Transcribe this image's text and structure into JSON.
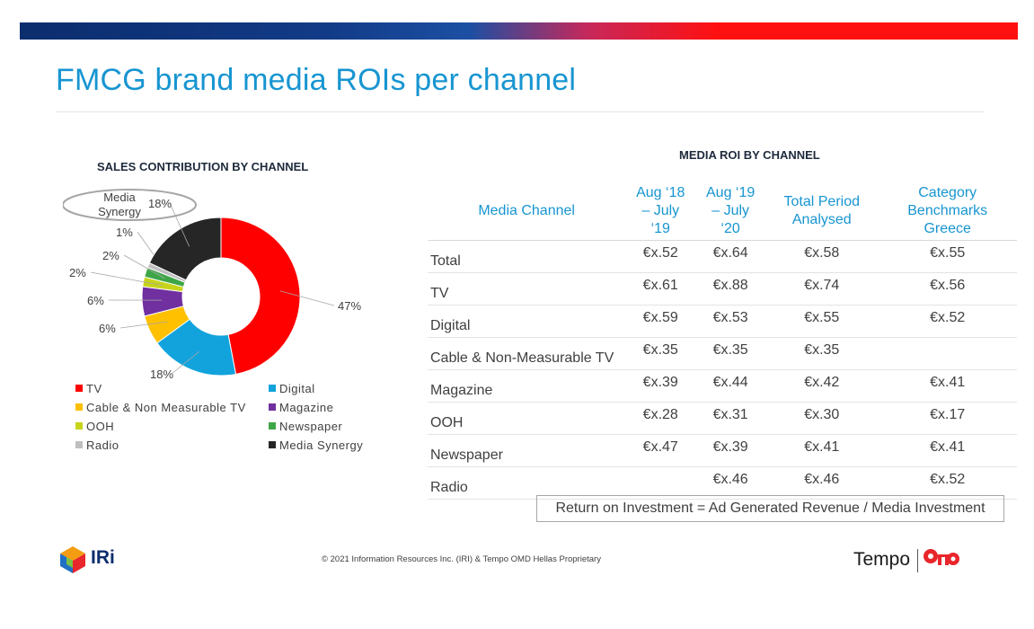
{
  "slide": {
    "title": "FMCG brand media ROIs per channel",
    "footer": "© 2021 Information Resources Inc. (IRI) & Tempo OMD Hellas Proprietary",
    "formula": "Return on Investment = Ad Generated Revenue / Media Investment",
    "logos": {
      "left": "IRi",
      "right": "Tempo"
    }
  },
  "colors": {
    "accent_blue": "#1795d1",
    "tv": "#ff0000",
    "digital": "#12a3dd",
    "cable": "#ffc000",
    "magazine": "#7030a0",
    "ooh": "#c7d41a",
    "newspaper": "#3fa648",
    "radio": "#bfbfbf",
    "media_synergy": "#262626"
  },
  "chart_data": [
    {
      "type": "pie",
      "style": "donut",
      "title": "SALES CONTRIBUTION BY CHANNEL",
      "legend_position": "bottom",
      "slices": [
        {
          "name": "TV",
          "value": 47,
          "label": "47%"
        },
        {
          "name": "Digital",
          "value": 18,
          "label": "18%"
        },
        {
          "name": "Cable & Non Measurable TV",
          "value": 6,
          "label": "6%"
        },
        {
          "name": "Magazine",
          "value": 6,
          "label": "6%"
        },
        {
          "name": "OOH",
          "value": 2,
          "label": "2%"
        },
        {
          "name": "Newspaper",
          "value": 2,
          "label": "2%"
        },
        {
          "name": "Radio",
          "value": 1,
          "label": "1%"
        },
        {
          "name": "Media Synergy",
          "value": 18,
          "label": "18%"
        }
      ],
      "annotation": "Media Synergy"
    },
    {
      "type": "table",
      "title": "MEDIA ROI BY CHANNEL",
      "columns": [
        "Media Channel",
        "Aug ‘18 – July ‘19",
        "Aug ‘19 – July ‘20",
        "Total Period Analysed",
        "Category Benchmarks Greece"
      ],
      "rows": [
        [
          "Total",
          "€x.52",
          "€x.64",
          "€x.58",
          "€x.55"
        ],
        [
          "TV",
          "€x.61",
          "€x.88",
          "€x.74",
          "€x.56"
        ],
        [
          "Digital",
          "€x.59",
          "€x.53",
          "€x.55",
          "€x.52"
        ],
        [
          "Cable & Non-Measurable TV",
          "€x.35",
          "€x.35",
          "€x.35",
          ""
        ],
        [
          "Magazine",
          "€x.39",
          "€x.44",
          "€x.42",
          "€x.41"
        ],
        [
          "OOH",
          "€x.28",
          "€x.31",
          "€x.30",
          "€x.17"
        ],
        [
          "Newspaper",
          "€x.47",
          "€x.39",
          "€x.41",
          "€x.41"
        ],
        [
          "Radio",
          "",
          "€x.46",
          "€x.46",
          "€x.52"
        ]
      ]
    }
  ]
}
